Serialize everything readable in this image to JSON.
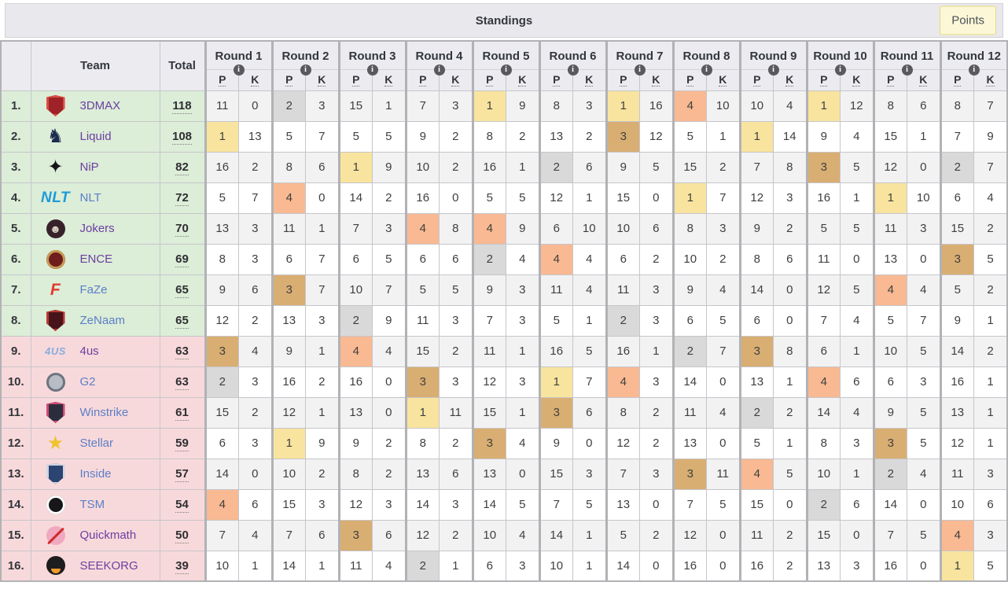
{
  "title": "Standings",
  "points_button": "Points",
  "columns": {
    "rank": "",
    "team": "Team",
    "total": "Total",
    "p": "P",
    "k": "K"
  },
  "rounds": [
    "Round 1",
    "Round 2",
    "Round 3",
    "Round 4",
    "Round 5",
    "Round 6",
    "Round 7",
    "Round 8",
    "Round 9",
    "Round 10",
    "Round 11",
    "Round 12"
  ],
  "info_icon_glyph": "i",
  "colors": {
    "band_top8": "#dcedd8",
    "band_bottom8": "#f8d9db",
    "stripe": "#f2f2f3",
    "place_1": "#f8e49e",
    "place_2": "#d9d9d9",
    "place_3": "#d9ae72",
    "place_4": "#f9b992",
    "link_blue": "#5b7fc7",
    "link_purple": "#6c3fa0",
    "header_bg": "#ececf0",
    "titlebar_bg": "#e9e9ed",
    "points_button_bg": "#fcf7d7",
    "points_button_border": "#e3da7c"
  },
  "standings": [
    {
      "rank": "1.",
      "name": "3DMAX",
      "slug": "3dmax",
      "link": "purple",
      "total": "118",
      "logo": {
        "kind": "shield",
        "bg": "#9e2227",
        "ring": "#d94f43"
      },
      "rounds": [
        [
          11,
          0
        ],
        [
          2,
          3
        ],
        [
          15,
          1
        ],
        [
          7,
          3
        ],
        [
          1,
          9
        ],
        [
          8,
          3
        ],
        [
          1,
          16
        ],
        [
          4,
          10
        ],
        [
          10,
          4
        ],
        [
          1,
          12
        ],
        [
          8,
          6
        ],
        [
          8,
          7
        ]
      ]
    },
    {
      "rank": "2.",
      "name": "Liquid",
      "slug": "liquid",
      "link": "purple",
      "total": "108",
      "logo": {
        "kind": "glyph",
        "glyph": "♞",
        "color": "#1c2b4e"
      },
      "rounds": [
        [
          1,
          13
        ],
        [
          5,
          7
        ],
        [
          5,
          5
        ],
        [
          9,
          2
        ],
        [
          8,
          2
        ],
        [
          13,
          2
        ],
        [
          3,
          12
        ],
        [
          5,
          1
        ],
        [
          1,
          14
        ],
        [
          9,
          4
        ],
        [
          15,
          1
        ],
        [
          7,
          9
        ]
      ]
    },
    {
      "rank": "3.",
      "name": "NiP",
      "slug": "nip",
      "link": "purple",
      "total": "82",
      "logo": {
        "kind": "glyph",
        "glyph": "✦",
        "color": "#161616"
      },
      "rounds": [
        [
          16,
          2
        ],
        [
          8,
          6
        ],
        [
          1,
          9
        ],
        [
          10,
          2
        ],
        [
          16,
          1
        ],
        [
          2,
          6
        ],
        [
          9,
          5
        ],
        [
          15,
          2
        ],
        [
          7,
          8
        ],
        [
          3,
          5
        ],
        [
          12,
          0
        ],
        [
          2,
          7
        ]
      ]
    },
    {
      "rank": "4.",
      "name": "NLT",
      "slug": "nlt",
      "link": "blue",
      "total": "72",
      "logo": {
        "kind": "text",
        "text": "NLT",
        "color": "#1e9cd7",
        "size": "19px"
      },
      "rounds": [
        [
          5,
          7
        ],
        [
          4,
          0
        ],
        [
          14,
          2
        ],
        [
          16,
          0
        ],
        [
          5,
          5
        ],
        [
          12,
          1
        ],
        [
          15,
          0
        ],
        [
          1,
          7
        ],
        [
          12,
          3
        ],
        [
          16,
          1
        ],
        [
          1,
          10
        ],
        [
          6,
          4
        ]
      ]
    },
    {
      "rank": "5.",
      "name": "Jokers",
      "slug": "jokers",
      "link": "purple",
      "total": "70",
      "logo": {
        "kind": "circle",
        "bg": "#37222a",
        "glyph": "☻",
        "fg": "#ddd3c6"
      },
      "rounds": [
        [
          13,
          3
        ],
        [
          11,
          1
        ],
        [
          7,
          3
        ],
        [
          4,
          8
        ],
        [
          4,
          9
        ],
        [
          6,
          10
        ],
        [
          10,
          6
        ],
        [
          8,
          3
        ],
        [
          9,
          2
        ],
        [
          5,
          5
        ],
        [
          11,
          3
        ],
        [
          15,
          2
        ]
      ]
    },
    {
      "rank": "6.",
      "name": "ENCE",
      "slug": "ence",
      "link": "purple",
      "total": "69",
      "logo": {
        "kind": "circle",
        "bg": "#6e1c1c",
        "ring": "#c59a55"
      },
      "rounds": [
        [
          8,
          3
        ],
        [
          6,
          7
        ],
        [
          6,
          5
        ],
        [
          6,
          6
        ],
        [
          2,
          4
        ],
        [
          4,
          4
        ],
        [
          6,
          2
        ],
        [
          10,
          2
        ],
        [
          8,
          6
        ],
        [
          11,
          0
        ],
        [
          13,
          0
        ],
        [
          3,
          5
        ]
      ]
    },
    {
      "rank": "7.",
      "name": "FaZe",
      "slug": "faze",
      "link": "blue",
      "total": "65",
      "logo": {
        "kind": "text",
        "text": "F",
        "color": "#e23c2e",
        "size": "21px"
      },
      "rounds": [
        [
          9,
          6
        ],
        [
          3,
          7
        ],
        [
          10,
          7
        ],
        [
          5,
          5
        ],
        [
          9,
          3
        ],
        [
          11,
          4
        ],
        [
          11,
          3
        ],
        [
          9,
          4
        ],
        [
          14,
          0
        ],
        [
          12,
          5
        ],
        [
          4,
          4
        ],
        [
          5,
          2
        ]
      ]
    },
    {
      "rank": "8.",
      "name": "ZeNaam",
      "slug": "zenaam",
      "link": "blue",
      "total": "65",
      "logo": {
        "kind": "shield",
        "bg": "#47141b",
        "ring": "#b53a31"
      },
      "rounds": [
        [
          12,
          2
        ],
        [
          13,
          3
        ],
        [
          2,
          9
        ],
        [
          11,
          3
        ],
        [
          7,
          3
        ],
        [
          5,
          1
        ],
        [
          2,
          3
        ],
        [
          6,
          5
        ],
        [
          6,
          0
        ],
        [
          7,
          4
        ],
        [
          5,
          7
        ],
        [
          9,
          1
        ]
      ]
    },
    {
      "rank": "9.",
      "name": "4us",
      "slug": "4us",
      "link": "purple",
      "total": "63",
      "logo": {
        "kind": "text",
        "text": "4US",
        "color": "#85aede",
        "size": "13px"
      },
      "rounds": [
        [
          3,
          4
        ],
        [
          9,
          1
        ],
        [
          4,
          4
        ],
        [
          15,
          2
        ],
        [
          11,
          1
        ],
        [
          16,
          5
        ],
        [
          16,
          1
        ],
        [
          2,
          7
        ],
        [
          3,
          8
        ],
        [
          6,
          1
        ],
        [
          10,
          5
        ],
        [
          14,
          2
        ]
      ]
    },
    {
      "rank": "10.",
      "name": "G2",
      "slug": "g2",
      "link": "blue",
      "total": "63",
      "logo": {
        "kind": "circle",
        "bg": "#b7bdc4",
        "ring": "#6d7480"
      },
      "rounds": [
        [
          2,
          3
        ],
        [
          16,
          2
        ],
        [
          16,
          0
        ],
        [
          3,
          3
        ],
        [
          12,
          3
        ],
        [
          1,
          7
        ],
        [
          4,
          3
        ],
        [
          14,
          0
        ],
        [
          13,
          1
        ],
        [
          4,
          6
        ],
        [
          6,
          3
        ],
        [
          16,
          1
        ]
      ]
    },
    {
      "rank": "11.",
      "name": "Winstrike",
      "slug": "winstrike",
      "link": "blue",
      "total": "61",
      "logo": {
        "kind": "shield",
        "bg": "#2c2d3c",
        "ring": "#d14a78"
      },
      "rounds": [
        [
          15,
          2
        ],
        [
          12,
          1
        ],
        [
          13,
          0
        ],
        [
          1,
          11
        ],
        [
          15,
          1
        ],
        [
          3,
          6
        ],
        [
          8,
          2
        ],
        [
          11,
          4
        ],
        [
          2,
          2
        ],
        [
          14,
          4
        ],
        [
          9,
          5
        ],
        [
          13,
          1
        ]
      ]
    },
    {
      "rank": "12.",
      "name": "Stellar",
      "slug": "stellar",
      "link": "blue",
      "total": "59",
      "logo": {
        "kind": "glyph",
        "glyph": "★",
        "color": "#eec32f"
      },
      "rounds": [
        [
          6,
          3
        ],
        [
          1,
          9
        ],
        [
          9,
          2
        ],
        [
          8,
          2
        ],
        [
          3,
          4
        ],
        [
          9,
          0
        ],
        [
          12,
          2
        ],
        [
          13,
          0
        ],
        [
          5,
          1
        ],
        [
          8,
          3
        ],
        [
          3,
          5
        ],
        [
          12,
          1
        ]
      ]
    },
    {
      "rank": "13.",
      "name": "Inside",
      "slug": "inside",
      "link": "blue",
      "total": "57",
      "logo": {
        "kind": "shield",
        "bg": "#2c4472",
        "ring": "#cdd6e4"
      },
      "rounds": [
        [
          14,
          0
        ],
        [
          10,
          2
        ],
        [
          8,
          2
        ],
        [
          13,
          6
        ],
        [
          13,
          0
        ],
        [
          15,
          3
        ],
        [
          7,
          3
        ],
        [
          3,
          11
        ],
        [
          4,
          5
        ],
        [
          10,
          1
        ],
        [
          2,
          4
        ],
        [
          11,
          3
        ]
      ]
    },
    {
      "rank": "14.",
      "name": "TSM",
      "slug": "tsm",
      "link": "blue",
      "total": "54",
      "logo": {
        "kind": "circle",
        "bg": "#17171a",
        "ring": "#ffffff"
      },
      "rounds": [
        [
          4,
          6
        ],
        [
          15,
          3
        ],
        [
          12,
          3
        ],
        [
          14,
          3
        ],
        [
          14,
          5
        ],
        [
          7,
          5
        ],
        [
          13,
          0
        ],
        [
          7,
          5
        ],
        [
          15,
          0
        ],
        [
          2,
          6
        ],
        [
          14,
          0
        ],
        [
          10,
          6
        ]
      ]
    },
    {
      "rank": "15.",
      "name": "Quickmath",
      "slug": "quickmath",
      "link": "purple",
      "total": "50",
      "logo": {
        "kind": "circle",
        "bg": "#f0a9bf",
        "slash": "#cf2b2b"
      },
      "rounds": [
        [
          7,
          4
        ],
        [
          7,
          6
        ],
        [
          3,
          6
        ],
        [
          12,
          2
        ],
        [
          10,
          4
        ],
        [
          14,
          1
        ],
        [
          5,
          2
        ],
        [
          12,
          0
        ],
        [
          11,
          2
        ],
        [
          15,
          0
        ],
        [
          7,
          5
        ],
        [
          4,
          3
        ]
      ]
    },
    {
      "rank": "16.",
      "name": "SEEKORG",
      "slug": "seekorg",
      "link": "purple",
      "total": "39",
      "logo": {
        "kind": "circle",
        "bg": "#1d1d1f",
        "accent": "#f09a2e"
      },
      "rounds": [
        [
          10,
          1
        ],
        [
          14,
          1
        ],
        [
          11,
          4
        ],
        [
          2,
          1
        ],
        [
          6,
          3
        ],
        [
          10,
          1
        ],
        [
          14,
          0
        ],
        [
          16,
          0
        ],
        [
          16,
          2
        ],
        [
          13,
          3
        ],
        [
          16,
          0
        ],
        [
          1,
          5
        ]
      ]
    }
  ]
}
